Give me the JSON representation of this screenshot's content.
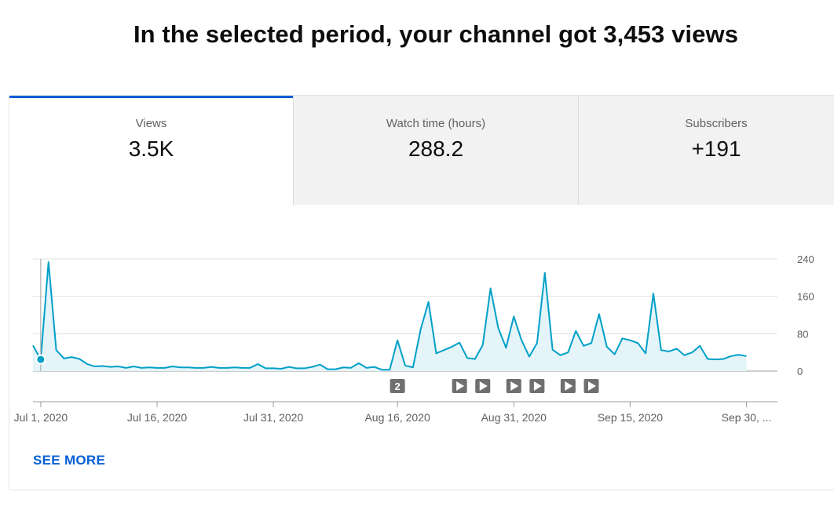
{
  "headline": "In the selected period, your channel got 3,453 views",
  "tabs": [
    {
      "label": "Views",
      "value": "3.5K"
    },
    {
      "label": "Watch time (hours)",
      "value": "288.2"
    },
    {
      "label": "Subscribers",
      "value": "+191"
    }
  ],
  "see_more": "SEE MORE",
  "colors": {
    "accent": "#065fd4",
    "line": "#00a0c8",
    "area": "#e4f4f9"
  },
  "chart_data": {
    "type": "area",
    "x_start": "2020-06-30",
    "x_end": "2020-10-04",
    "values": [
      55,
      25,
      233,
      45,
      27,
      30,
      26,
      15,
      10,
      11,
      9,
      10,
      7,
      10,
      7,
      8,
      7,
      7,
      10,
      8,
      8,
      7,
      7,
      9,
      7,
      7,
      8,
      7,
      7,
      15,
      6,
      6,
      5,
      9,
      6,
      6,
      9,
      14,
      4,
      4,
      8,
      7,
      17,
      7,
      9,
      3,
      3,
      66,
      12,
      8,
      90,
      148,
      38,
      45,
      52,
      61,
      28,
      26,
      56,
      177,
      92,
      50,
      117,
      66,
      31,
      60,
      210,
      46,
      34,
      40,
      86,
      54,
      60,
      122,
      52,
      36,
      70,
      66,
      60,
      38,
      166,
      45,
      42,
      48,
      34,
      40,
      54,
      26,
      25,
      26,
      32,
      35,
      32
    ],
    "ylim": [
      0,
      240
    ],
    "yticks": [
      0,
      80,
      160,
      240
    ],
    "ytick_labels": [
      "0",
      "80",
      "160",
      "240"
    ],
    "xtick_labels": [
      "Jul 1, 2020",
      "Jul 16, 2020",
      "Jul 31, 2020",
      "Aug 16, 2020",
      "Aug 31, 2020",
      "Sep 15, 2020",
      "Sep 30, ..."
    ],
    "xtick_dates": [
      "2020-07-01",
      "2020-07-16",
      "2020-07-31",
      "2020-08-16",
      "2020-08-31",
      "2020-09-15",
      "2020-09-30"
    ],
    "highlight_date": "2020-07-01",
    "grid": true,
    "markers": [
      {
        "kind": "count",
        "label": "2",
        "date": "2020-08-16"
      },
      {
        "kind": "video",
        "date": "2020-08-24"
      },
      {
        "kind": "video",
        "date": "2020-08-27"
      },
      {
        "kind": "video",
        "date": "2020-08-31"
      },
      {
        "kind": "video",
        "date": "2020-09-03"
      },
      {
        "kind": "video",
        "date": "2020-09-07"
      },
      {
        "kind": "video",
        "date": "2020-09-10"
      }
    ]
  }
}
